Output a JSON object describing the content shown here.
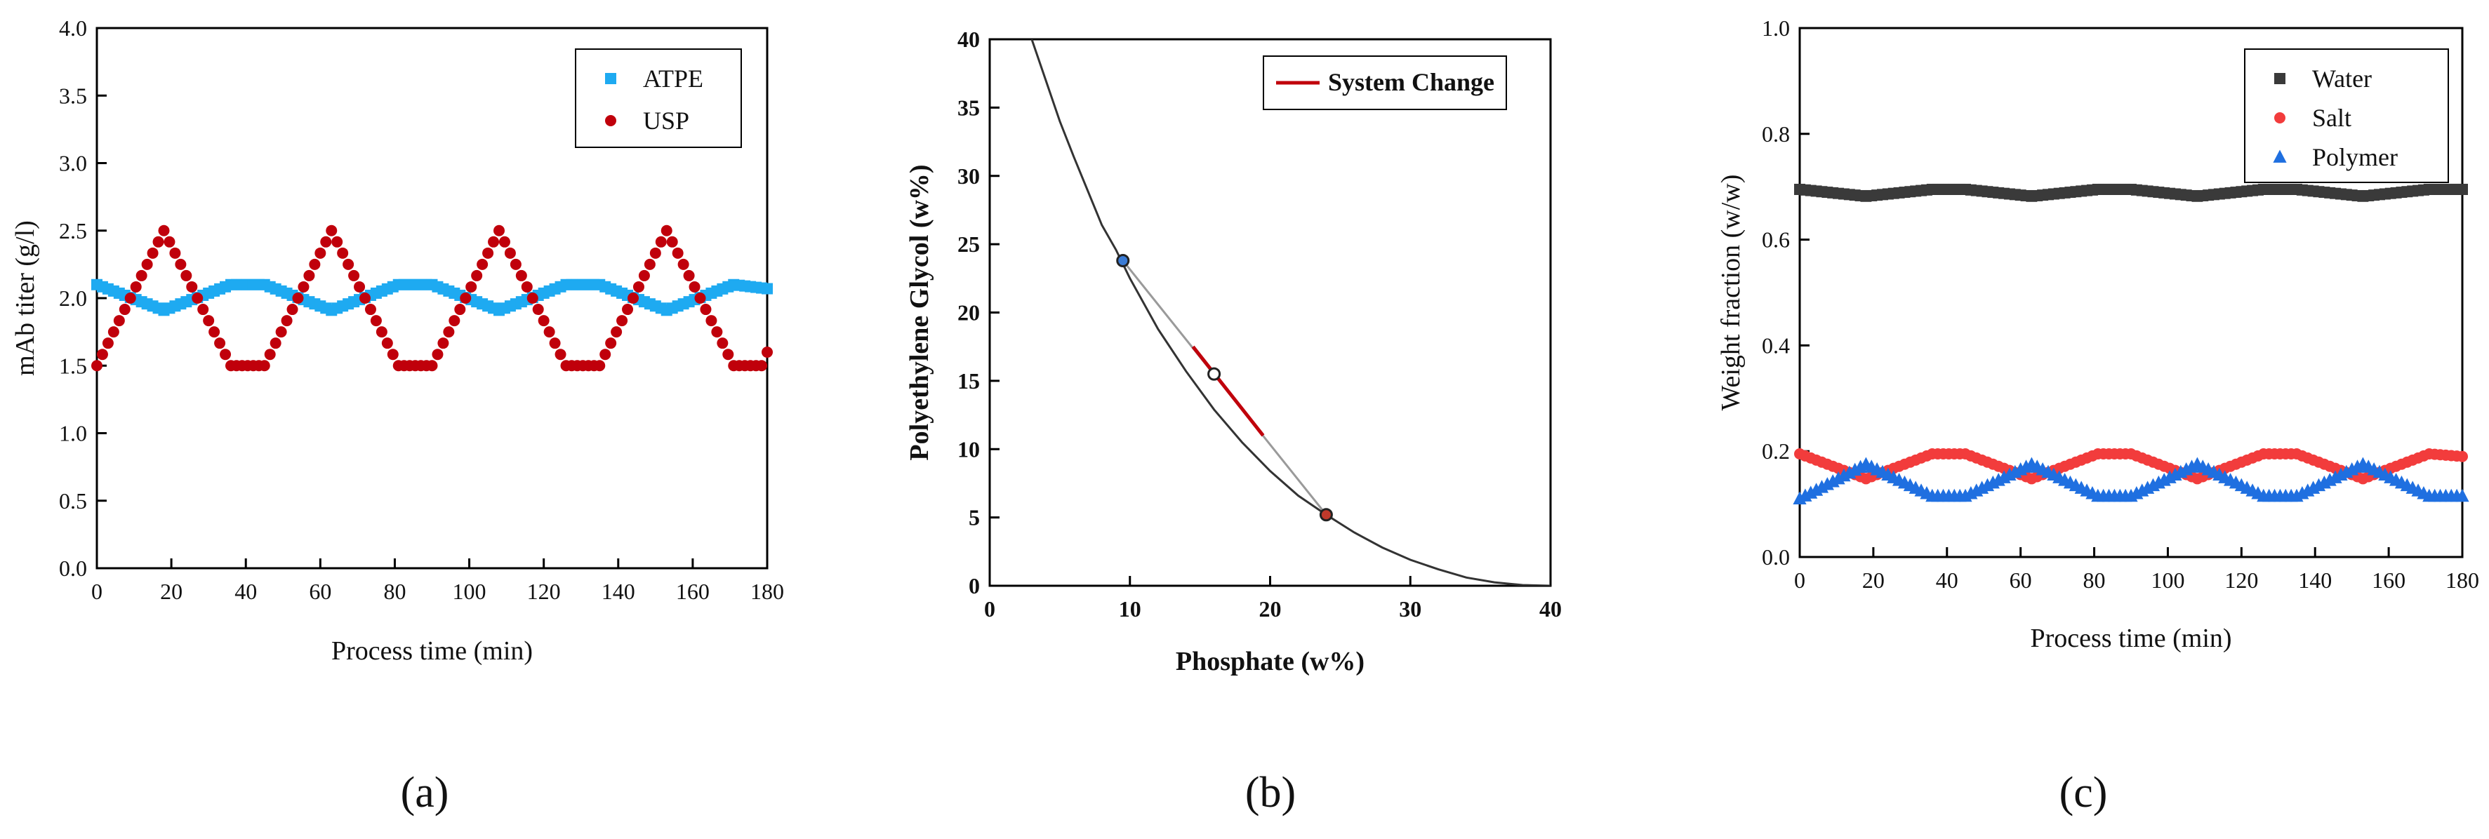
{
  "chart_data": [
    {
      "id": "a",
      "type": "scatter",
      "panel_label": "(a)",
      "xlabel": "Process time (min)",
      "ylabel": "mAb titer (g/l)",
      "xlim": [
        0,
        180
      ],
      "ylim": [
        0,
        4
      ],
      "xticks": [
        "0",
        "20",
        "40",
        "60",
        "80",
        "100",
        "120",
        "140",
        "160",
        "180"
      ],
      "yticks": [
        "0.0",
        "0.5",
        "1.0",
        "1.5",
        "2.0",
        "2.5",
        "3.0",
        "3.5",
        "4.0"
      ],
      "legend_position": "top-right",
      "series": [
        {
          "name": "ATPE",
          "marker": "square",
          "color": "#1eaaf1",
          "breakpoints": [
            [
              0,
              2.1
            ],
            [
              18,
              1.91
            ],
            [
              36,
              2.1
            ],
            [
              45,
              2.1
            ],
            [
              63,
              1.91
            ],
            [
              81,
              2.1
            ],
            [
              90,
              2.1
            ],
            [
              108,
              1.91
            ],
            [
              126,
              2.1
            ],
            [
              135,
              2.1
            ],
            [
              153,
              1.91
            ],
            [
              171,
              2.1
            ],
            [
              180,
              2.07
            ]
          ]
        },
        {
          "name": "USP",
          "marker": "circle",
          "color": "#c0000b",
          "breakpoints": [
            [
              0,
              1.5
            ],
            [
              18,
              2.5
            ],
            [
              36,
              1.5
            ],
            [
              45,
              1.5
            ],
            [
              63,
              2.5
            ],
            [
              81,
              1.5
            ],
            [
              90,
              1.5
            ],
            [
              108,
              2.5
            ],
            [
              126,
              1.5
            ],
            [
              135,
              1.5
            ],
            [
              153,
              2.5
            ],
            [
              171,
              1.5
            ],
            [
              179,
              1.5
            ],
            [
              180,
              1.6
            ]
          ]
        }
      ]
    },
    {
      "id": "b",
      "type": "line",
      "panel_label": "(b)",
      "xlabel": "Phosphate (w%)",
      "ylabel": "Polyethylene Glycol (w%)",
      "xlim": [
        0,
        40
      ],
      "ylim": [
        0,
        40
      ],
      "xticks": [
        "0",
        "10",
        "20",
        "30",
        "40"
      ],
      "yticks": [
        "0",
        "5",
        "10",
        "15",
        "20",
        "25",
        "30",
        "35",
        "40"
      ],
      "legend_position": "top-right",
      "binodal": [
        [
          3,
          40
        ],
        [
          4,
          37
        ],
        [
          5,
          34
        ],
        [
          6,
          31.4
        ],
        [
          7,
          28.9
        ],
        [
          8,
          26.4
        ],
        [
          9,
          24.6
        ],
        [
          10,
          22.5
        ],
        [
          12,
          18.8
        ],
        [
          14,
          15.7
        ],
        [
          16,
          12.9
        ],
        [
          18,
          10.5
        ],
        [
          20,
          8.4
        ],
        [
          22,
          6.6
        ],
        [
          24,
          5.2
        ],
        [
          26,
          3.9
        ],
        [
          28,
          2.8
        ],
        [
          30,
          1.9
        ],
        [
          32,
          1.2
        ],
        [
          34,
          0.6
        ],
        [
          36,
          0.25
        ],
        [
          38,
          0.05
        ],
        [
          40,
          0
        ]
      ],
      "tie_line": [
        [
          9.5,
          23.8
        ],
        [
          24,
          5.2
        ]
      ],
      "system_change": {
        "name": "System Change",
        "color": "#c0000b",
        "points": [
          [
            14.5,
            17.5
          ],
          [
            19.5,
            11
          ]
        ]
      },
      "points": [
        {
          "name": "top-phase",
          "x": 9.5,
          "y": 23.8,
          "color": "#3a7bd5"
        },
        {
          "name": "feed-point",
          "x": 16,
          "y": 15.5,
          "color": "#ffffff"
        },
        {
          "name": "bottom-phase",
          "x": 24,
          "y": 5.2,
          "color": "#c0392b"
        }
      ]
    },
    {
      "id": "c",
      "type": "scatter",
      "panel_label": "(c)",
      "xlabel": "Process time (min)",
      "ylabel": "Weight fraction (w/w)",
      "xlim": [
        0,
        180
      ],
      "ylim": [
        0,
        1
      ],
      "xticks": [
        "0",
        "20",
        "40",
        "60",
        "80",
        "100",
        "120",
        "140",
        "160",
        "180"
      ],
      "yticks": [
        "0.0",
        "0.2",
        "0.4",
        "0.6",
        "0.8",
        "1.0"
      ],
      "legend_position": "top-right",
      "series": [
        {
          "name": "Water",
          "marker": "square",
          "color": "#3a3a3a",
          "breakpoints": [
            [
              0,
              0.695
            ],
            [
              18,
              0.682
            ],
            [
              36,
              0.695
            ],
            [
              45,
              0.695
            ],
            [
              63,
              0.682
            ],
            [
              81,
              0.695
            ],
            [
              90,
              0.695
            ],
            [
              108,
              0.682
            ],
            [
              126,
              0.695
            ],
            [
              135,
              0.695
            ],
            [
              153,
              0.682
            ],
            [
              171,
              0.695
            ],
            [
              180,
              0.695
            ]
          ]
        },
        {
          "name": "Salt",
          "marker": "circle",
          "color": "#f23c3c",
          "breakpoints": [
            [
              0,
              0.195
            ],
            [
              18,
              0.148
            ],
            [
              36,
              0.195
            ],
            [
              45,
              0.195
            ],
            [
              63,
              0.148
            ],
            [
              81,
              0.195
            ],
            [
              90,
              0.195
            ],
            [
              108,
              0.148
            ],
            [
              126,
              0.195
            ],
            [
              135,
              0.195
            ],
            [
              153,
              0.148
            ],
            [
              171,
              0.195
            ],
            [
              180,
              0.19
            ]
          ]
        },
        {
          "name": "Polymer",
          "marker": "triangle",
          "color": "#1f6fe0",
          "breakpoints": [
            [
              0,
              0.11
            ],
            [
              18,
              0.175
            ],
            [
              36,
              0.115
            ],
            [
              45,
              0.115
            ],
            [
              63,
              0.175
            ],
            [
              81,
              0.115
            ],
            [
              90,
              0.115
            ],
            [
              108,
              0.175
            ],
            [
              126,
              0.115
            ],
            [
              135,
              0.115
            ],
            [
              153,
              0.175
            ],
            [
              171,
              0.115
            ],
            [
              180,
              0.115
            ]
          ]
        }
      ]
    }
  ]
}
